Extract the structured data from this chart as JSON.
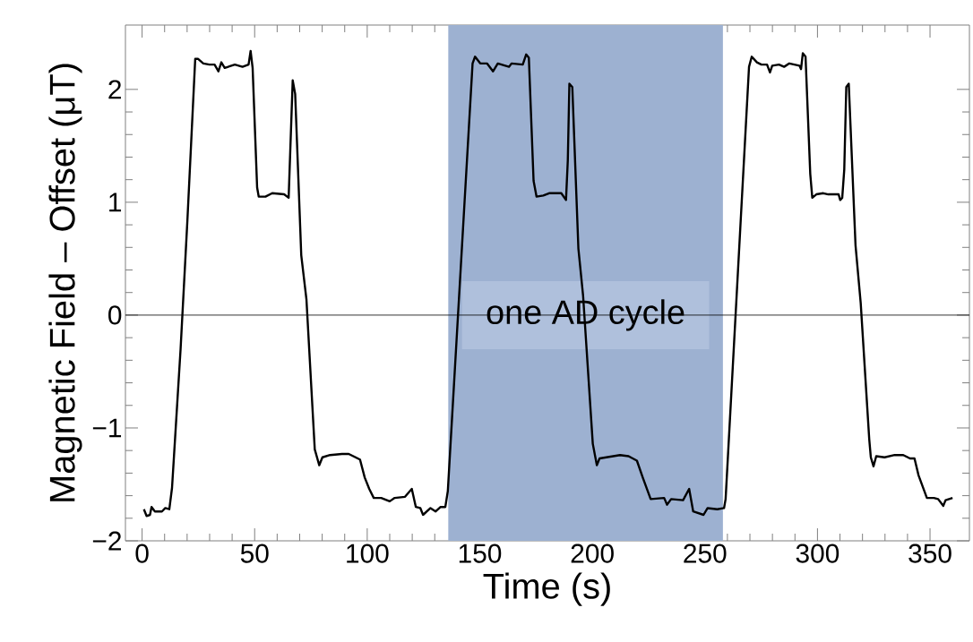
{
  "chart_data": {
    "type": "line",
    "xlabel": "Time (s)",
    "ylabel": "Magnetic Field – Offset (μT)",
    "xlim": [
      -7.4,
      367.5
    ],
    "ylim": [
      -2.0,
      2.57
    ],
    "xticks": [
      0,
      50,
      100,
      150,
      200,
      250,
      300,
      350
    ],
    "yticks": [
      {
        "value": -2,
        "label": "−2"
      },
      {
        "value": -1,
        "label": "−1"
      },
      0,
      1,
      2
    ],
    "grid": false,
    "marker": "none",
    "line_style": "solid",
    "ref_lines": [
      {
        "axis": "y",
        "value": 0,
        "color": "#000000"
      }
    ],
    "bands": [
      {
        "axis": "x",
        "from": 136,
        "to": 258,
        "label": "one AD cycle",
        "color": "#9db1d1"
      }
    ],
    "series": [
      {
        "color": "#000000",
        "x": [
          0.8,
          2,
          3.5,
          4.2,
          5.7,
          8.8,
          10.3,
          12.1,
          13.3,
          17.1,
          20.1,
          23.6,
          24.9,
          27.2,
          29.9,
          32.2,
          33.9,
          35.2,
          36.7,
          41.2,
          44.6,
          47.3,
          48.2,
          49.1,
          51.1,
          51.8,
          54.8,
          57.8,
          63.1,
          65.1,
          66.9,
          68.0,
          70.7,
          73.0,
          76.7,
          78.7,
          80.1,
          83.5,
          88.8,
          91.8,
          96.8,
          98.9,
          100.9,
          102.9,
          106.2,
          110.0,
          112.2,
          116.8,
          119.8,
          121.6,
          123.6,
          124.8,
          128.1,
          130.4,
          132.6,
          134.7,
          135.8,
          146.8,
          147.9,
          150.2,
          153.2,
          155.9,
          158.0,
          163.0,
          164.1,
          169.1,
          170.6,
          171.8,
          173.9,
          175.2,
          178.2,
          180.8,
          186.2,
          188.3,
          189.1,
          189.8,
          191.1,
          193.8,
          195.9,
          200.2,
          202.0,
          203.2,
          206.2,
          212.3,
          216.1,
          219.8,
          222.4,
          225.9,
          231.9,
          233.2,
          235.0,
          240.3,
          243.0,
          244.8,
          249.4,
          251.2,
          255.5,
          258.5,
          259.2,
          269.6,
          270.8,
          273.1,
          275.1,
          277.6,
          278.9,
          279.9,
          282.9,
          285.2,
          287.5,
          292.0,
          292.7,
          293.5,
          294.7,
          296.8,
          297.7,
          299.5,
          302.6,
          304.8,
          309.4,
          310.1,
          311.0,
          311.9,
          312.8,
          313.9,
          316.9,
          319.2,
          323.0,
          323.7,
          324.9,
          326.1,
          329.8,
          334.3,
          338.1,
          341.1,
          343.1,
          344.9,
          348.6,
          351.7,
          353.6,
          355.9,
          356.9,
          360.0
        ],
        "values": [
          -1.72,
          -1.78,
          -1.77,
          -1.7,
          -1.74,
          -1.74,
          -1.71,
          -1.72,
          -1.53,
          -0.3,
          0.83,
          2.27,
          2.27,
          2.23,
          2.22,
          2.22,
          2.16,
          2.24,
          2.19,
          2.22,
          2.2,
          2.22,
          2.34,
          2.19,
          1.13,
          1.05,
          1.05,
          1.08,
          1.07,
          1.04,
          2.08,
          1.96,
          0.53,
          0.14,
          -1.19,
          -1.33,
          -1.26,
          -1.24,
          -1.23,
          -1.23,
          -1.28,
          -1.44,
          -1.54,
          -1.62,
          -1.62,
          -1.65,
          -1.62,
          -1.61,
          -1.54,
          -1.7,
          -1.71,
          -1.77,
          -1.71,
          -1.74,
          -1.7,
          -1.7,
          -1.56,
          2.23,
          2.29,
          2.23,
          2.23,
          2.16,
          2.23,
          2.2,
          2.23,
          2.22,
          2.31,
          2.28,
          1.19,
          1.05,
          1.06,
          1.08,
          1.08,
          1.02,
          1.37,
          2.05,
          2.02,
          0.59,
          0.17,
          -1.14,
          -1.33,
          -1.27,
          -1.26,
          -1.24,
          -1.25,
          -1.29,
          -1.44,
          -1.63,
          -1.62,
          -1.68,
          -1.63,
          -1.64,
          -1.54,
          -1.74,
          -1.77,
          -1.71,
          -1.72,
          -1.71,
          -1.63,
          2.2,
          2.29,
          2.24,
          2.22,
          2.22,
          2.15,
          2.21,
          2.22,
          2.2,
          2.23,
          2.21,
          2.18,
          2.32,
          2.29,
          1.25,
          1.04,
          1.07,
          1.08,
          1.07,
          1.07,
          1.02,
          1.04,
          1.29,
          2.02,
          2.05,
          0.62,
          0.11,
          -1.1,
          -1.26,
          -1.34,
          -1.25,
          -1.26,
          -1.24,
          -1.24,
          -1.27,
          -1.27,
          -1.42,
          -1.62,
          -1.62,
          -1.63,
          -1.69,
          -1.64,
          -1.62
        ]
      }
    ]
  }
}
